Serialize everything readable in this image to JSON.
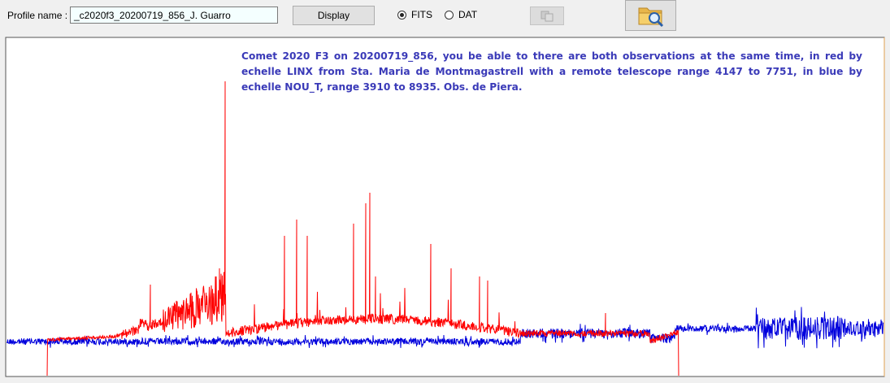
{
  "toolbar": {
    "profile_label": "Profile name :",
    "profile_value": "_c2020f3_20200719_856_J. Guarro",
    "display_button": "Display",
    "format_options": [
      "FITS",
      "DAT"
    ]
  },
  "plot": {
    "annotation": "Comet 2020 F3 on 20200719_856, you be able to there are both observations at the same time, in red by echelle LINX from Sta. Maria de Montmagastrell with a remote telescope range 4147 to 7751, in blue by echelle NOU_T, range 3910 to 8935. Obs. de Piera."
  }
}
